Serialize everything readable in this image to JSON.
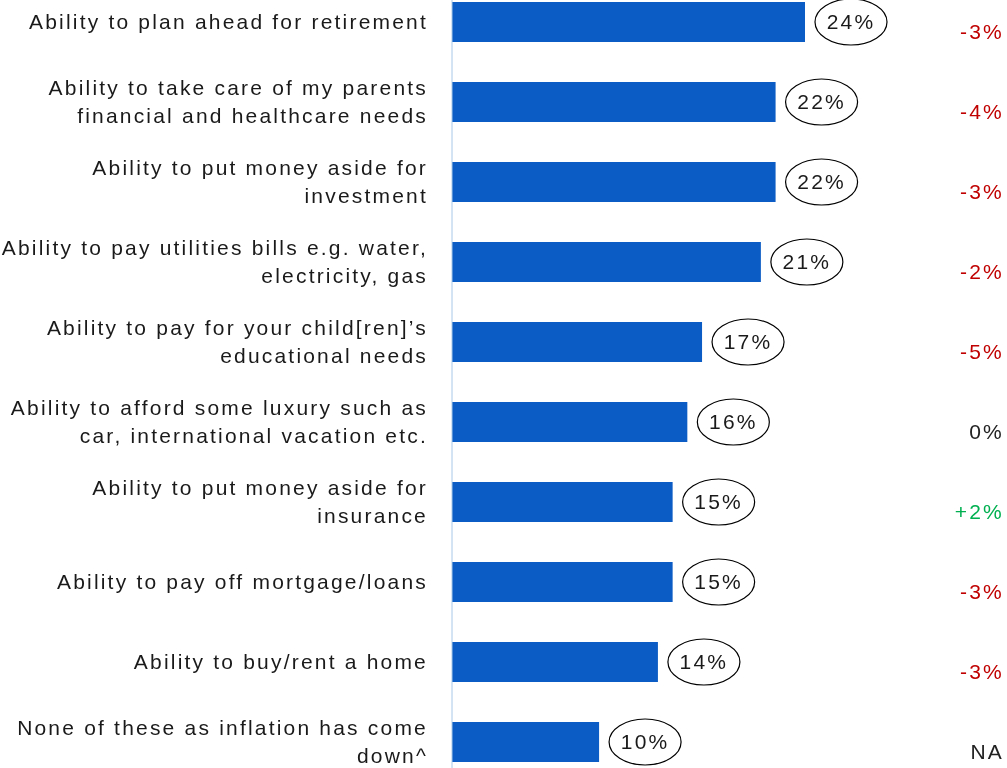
{
  "chart_data": {
    "type": "bar",
    "orientation": "horizontal",
    "categories": [
      "Ability to plan ahead for retirement",
      "Ability to take care of my parents financial and healthcare needs",
      "Ability to put money aside for investment",
      "Ability to pay utilities bills e.g. water, electricity, gas",
      "Ability to pay for your child[ren]’s educational needs",
      "Ability to afford some luxury such as car, international vacation etc.",
      "Ability to put money aside for insurance",
      "Ability to pay off mortgage/loans",
      "Ability to buy/rent a home",
      "None of these as inflation has come down^"
    ],
    "values": [
      24,
      22,
      22,
      21,
      17,
      16,
      15,
      15,
      14,
      10
    ],
    "value_labels": [
      "24%",
      "22%",
      "22%",
      "21%",
      "17%",
      "16%",
      "15%",
      "15%",
      "14%",
      "10%"
    ],
    "color": "#0b5cc4",
    "annotations": [
      "-3%",
      "-4%",
      "-3%",
      "-2%",
      "-5%",
      "0%",
      "+2%",
      "-3%",
      "-3%",
      "NA"
    ]
  }
}
